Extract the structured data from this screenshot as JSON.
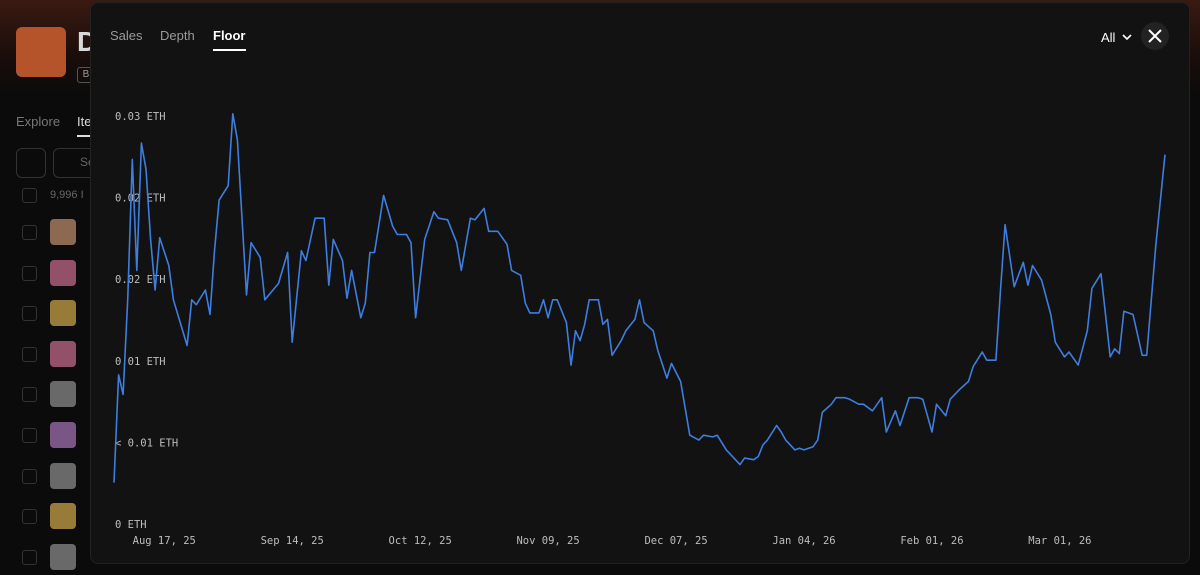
{
  "background": {
    "collection_initial": "D",
    "badge": "B",
    "nav": [
      "Explore",
      "Ite"
    ],
    "search": "Se",
    "count": "9,996 I"
  },
  "tabs": [
    "Sales",
    "Depth",
    "Floor"
  ],
  "range_select": "All",
  "chart_data": {
    "type": "line",
    "color": "#3d7ee0",
    "x": [
      "2025-08-06",
      "2025-08-07",
      "2025-08-08",
      "2025-08-09",
      "2025-08-10",
      "2025-08-11",
      "2025-08-12",
      "2025-08-13",
      "2025-08-14",
      "2025-08-15",
      "2025-08-16",
      "2025-08-18",
      "2025-08-19",
      "2025-08-22",
      "2025-08-23",
      "2025-08-24",
      "2025-08-26",
      "2025-08-27",
      "2025-08-28",
      "2025-08-29",
      "2025-08-31",
      "2025-09-01",
      "2025-09-02",
      "2025-09-04",
      "2025-09-05",
      "2025-09-07",
      "2025-09-08",
      "2025-09-11",
      "2025-09-13",
      "2025-09-14",
      "2025-09-16",
      "2025-09-17",
      "2025-09-19",
      "2025-09-21",
      "2025-09-22",
      "2025-09-23",
      "2025-09-25",
      "2025-09-26",
      "2025-09-27",
      "2025-09-29",
      "2025-09-30",
      "2025-10-01",
      "2025-10-02",
      "2025-10-04",
      "2025-10-06",
      "2025-10-07",
      "2025-10-09",
      "2025-10-10",
      "2025-10-11",
      "2025-10-13",
      "2025-10-15",
      "2025-10-16",
      "2025-10-18",
      "2025-10-20",
      "2025-10-21",
      "2025-10-23",
      "2025-10-24",
      "2025-10-26",
      "2025-10-27",
      "2025-10-29",
      "2025-10-31",
      "2025-11-01",
      "2025-11-03",
      "2025-11-04",
      "2025-11-05",
      "2025-11-07",
      "2025-11-08",
      "2025-11-09",
      "2025-11-10",
      "2025-11-11",
      "2025-11-13",
      "2025-11-14",
      "2025-11-15",
      "2025-11-16",
      "2025-11-17",
      "2025-11-18",
      "2025-11-20",
      "2025-11-21",
      "2025-11-22",
      "2025-11-23",
      "2025-11-25",
      "2025-11-26",
      "2025-11-28",
      "2025-11-29",
      "2025-11-30",
      "2025-12-02",
      "2025-12-03",
      "2025-12-05",
      "2025-12-06",
      "2025-12-08",
      "2025-12-10",
      "2025-12-12",
      "2025-12-13",
      "2025-12-15",
      "2025-12-16",
      "2025-12-18",
      "2025-12-19",
      "2025-12-21",
      "2025-12-22",
      "2025-12-24",
      "2025-12-25",
      "2025-12-26",
      "2025-12-27",
      "2025-12-29",
      "2025-12-30",
      "2025-12-31",
      "2026-01-02",
      "2026-01-03",
      "2026-01-04",
      "2026-01-06",
      "2026-01-07",
      "2026-01-08",
      "2026-01-10",
      "2026-01-11",
      "2026-01-13",
      "2026-01-14",
      "2026-01-16",
      "2026-01-17",
      "2026-01-19",
      "2026-01-21",
      "2026-01-22",
      "2026-01-24",
      "2026-01-25",
      "2026-01-27",
      "2026-01-29",
      "2026-01-30",
      "2026-02-01",
      "2026-02-02",
      "2026-02-04",
      "2026-02-05",
      "2026-02-07",
      "2026-02-09",
      "2026-02-10",
      "2026-02-12",
      "2026-02-13",
      "2026-02-15",
      "2026-02-16",
      "2026-02-17",
      "2026-02-19",
      "2026-02-21",
      "2026-02-22",
      "2026-02-23",
      "2026-02-25",
      "2026-02-27",
      "2026-02-28",
      "2026-03-02",
      "2026-03-03",
      "2026-03-05",
      "2026-03-07",
      "2026-03-08",
      "2026-03-10",
      "2026-03-12",
      "2026-03-13",
      "2026-03-14",
      "2026-03-15",
      "2026-03-17",
      "2026-03-19",
      "2026-03-20",
      "2026-03-22",
      "2026-03-24"
    ],
    "values": [
      0.0026,
      0.0092,
      0.008,
      0.0138,
      0.0224,
      0.0156,
      0.0234,
      0.0218,
      0.0175,
      0.0144,
      0.0176,
      0.0159,
      0.0138,
      0.011,
      0.0138,
      0.0135,
      0.0144,
      0.0129,
      0.0168,
      0.0199,
      0.0208,
      0.0252,
      0.0236,
      0.0141,
      0.0173,
      0.0164,
      0.0138,
      0.0148,
      0.0167,
      0.0112,
      0.0168,
      0.0162,
      0.0188,
      0.0188,
      0.0147,
      0.0175,
      0.0162,
      0.0139,
      0.0156,
      0.0127,
      0.0136,
      0.0167,
      0.0167,
      0.0202,
      0.0183,
      0.0178,
      0.0178,
      0.0173,
      0.0127,
      0.0175,
      0.0192,
      0.0188,
      0.0187,
      0.0173,
      0.0156,
      0.0188,
      0.0187,
      0.0194,
      0.018,
      0.018,
      0.0172,
      0.0156,
      0.0153,
      0.0136,
      0.013,
      0.013,
      0.0138,
      0.0127,
      0.0138,
      0.0138,
      0.0124,
      0.0098,
      0.0119,
      0.0113,
      0.0123,
      0.0138,
      0.0138,
      0.0123,
      0.0126,
      0.0104,
      0.0113,
      0.0119,
      0.0126,
      0.0138,
      0.0124,
      0.0119,
      0.0107,
      0.009,
      0.0099,
      0.0088,
      0.0055,
      0.0052,
      0.0055,
      0.0054,
      0.0055,
      0.0046,
      0.0043,
      0.0037,
      0.0041,
      0.004,
      0.0042,
      0.0049,
      0.0052,
      0.0061,
      0.0057,
      0.0052,
      0.0046,
      0.0047,
      0.0046,
      0.0048,
      0.0052,
      0.0069,
      0.0074,
      0.0078,
      0.0078,
      0.0077,
      0.0074,
      0.0074,
      0.007,
      0.0078,
      0.0057,
      0.007,
      0.0061,
      0.0078,
      0.0078,
      0.0077,
      0.0057,
      0.0074,
      0.0067,
      0.0077,
      0.0083,
      0.0088,
      0.0097,
      0.0106,
      0.0101,
      0.0101,
      0.0144,
      0.0184,
      0.0146,
      0.0161,
      0.0147,
      0.0159,
      0.015,
      0.0129,
      0.0112,
      0.0103,
      0.0106,
      0.0098,
      0.0119,
      0.0145,
      0.0154,
      0.0103,
      0.0108,
      0.0105,
      0.0131,
      0.0129,
      0.0104,
      0.0104,
      0.0172,
      0.0227
    ],
    "xlim": [
      "2025-08-06",
      "2026-03-24"
    ],
    "xticks": [
      {
        "value": "2025-08-17",
        "label": "Aug 17, 25"
      },
      {
        "value": "2025-09-14",
        "label": "Sep 14, 25"
      },
      {
        "value": "2025-10-12",
        "label": "Oct 12, 25"
      },
      {
        "value": "2025-11-09",
        "label": "Nov 09, 25"
      },
      {
        "value": "2025-12-07",
        "label": "Dec 07, 25"
      },
      {
        "value": "2026-01-04",
        "label": "Jan 04, 26"
      },
      {
        "value": "2026-02-01",
        "label": "Feb 01, 26"
      },
      {
        "value": "2026-03-01",
        "label": "Mar 01, 26"
      }
    ],
    "ylim": [
      0,
      0.026
    ],
    "yticks": [
      {
        "value": 0,
        "label": "0 ETH"
      },
      {
        "value": 0.005,
        "label": "< 0.01 ETH"
      },
      {
        "value": 0.01,
        "label": "0.01 ETH"
      },
      {
        "value": 0.015,
        "label": "0.02 ETH"
      },
      {
        "value": 0.02,
        "label": "0.02 ETH"
      },
      {
        "value": 0.025,
        "label": "0.03 ETH"
      }
    ]
  }
}
